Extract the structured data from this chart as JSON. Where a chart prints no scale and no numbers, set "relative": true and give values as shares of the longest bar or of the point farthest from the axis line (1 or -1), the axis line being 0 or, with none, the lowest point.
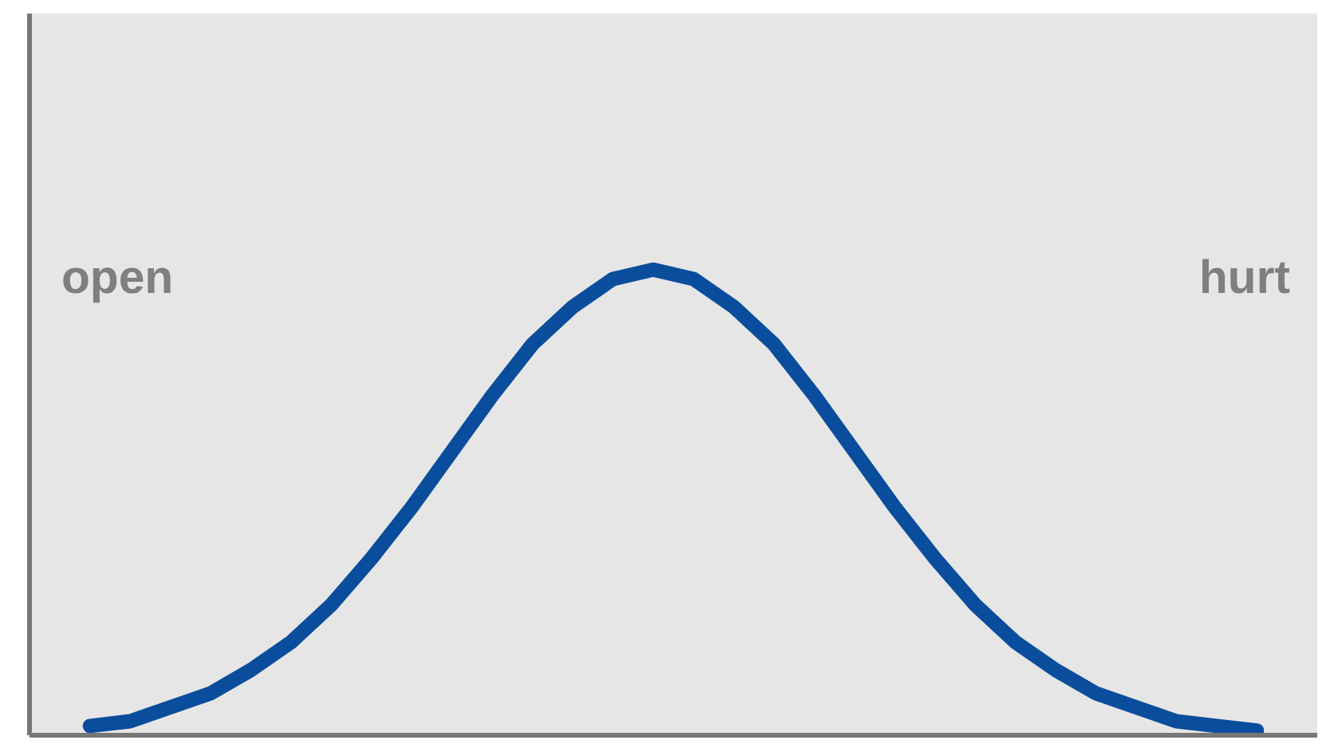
{
  "chart_data": {
    "type": "line",
    "relative": true,
    "tick_labels": false,
    "annotations": [
      "open",
      "hurt"
    ],
    "categories": [
      null,
      null,
      null,
      null,
      null,
      null,
      null,
      null,
      null,
      null,
      null,
      null,
      null,
      null,
      null,
      null,
      null,
      null,
      null,
      null,
      null,
      null,
      null,
      null,
      null,
      null,
      null,
      null,
      null,
      null
    ],
    "series": [
      {
        "color": "#0a4d9c",
        "values": [
          0.02,
          0.03,
          0.06,
          0.09,
          0.14,
          0.2,
          0.28,
          0.38,
          0.49,
          0.61,
          0.73,
          0.84,
          0.92,
          0.98,
          1.0,
          0.98,
          0.92,
          0.84,
          0.73,
          0.61,
          0.49,
          0.38,
          0.28,
          0.2,
          0.14,
          0.09,
          0.06,
          0.03,
          0.02,
          0.01
        ]
      }
    ]
  }
}
